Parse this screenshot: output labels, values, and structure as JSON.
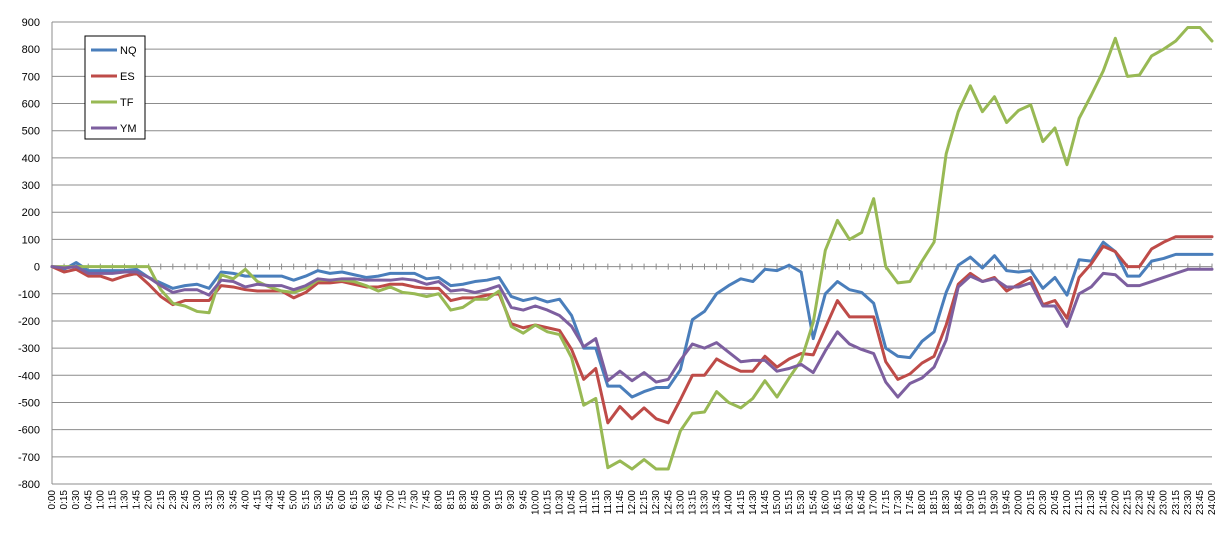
{
  "chart_data": {
    "type": "line",
    "title": "",
    "xlabel": "",
    "ylabel": "",
    "ylim": [
      -800,
      900
    ],
    "yticks": [
      900,
      800,
      700,
      600,
      500,
      400,
      300,
      200,
      100,
      0,
      -100,
      -200,
      -300,
      -400,
      -500,
      -600,
      -700,
      -800
    ],
    "grid": true,
    "legend_position": "top-left",
    "x": [
      "0:00",
      "0:15",
      "0:30",
      "0:45",
      "1:00",
      "1:15",
      "1:30",
      "1:45",
      "2:00",
      "2:15",
      "2:30",
      "2:45",
      "3:00",
      "3:15",
      "3:30",
      "3:45",
      "4:00",
      "4:15",
      "4:30",
      "4:45",
      "5:00",
      "5:15",
      "5:30",
      "5:45",
      "6:00",
      "6:15",
      "6:30",
      "6:45",
      "7:00",
      "7:15",
      "7:30",
      "7:45",
      "8:00",
      "8:15",
      "8:30",
      "8:45",
      "9:00",
      "9:15",
      "9:30",
      "9:45",
      "10:00",
      "10:15",
      "10:30",
      "10:45",
      "11:00",
      "11:15",
      "11:30",
      "11:45",
      "12:00",
      "12:15",
      "12:30",
      "12:45",
      "13:00",
      "13:15",
      "13:30",
      "13:45",
      "14:00",
      "14:15",
      "14:30",
      "14:45",
      "15:00",
      "15:15",
      "15:30",
      "15:45",
      "16:00",
      "16:15",
      "16:30",
      "16:45",
      "17:00",
      "17:15",
      "17:30",
      "17:45",
      "18:00",
      "18:15",
      "18:30",
      "18:45",
      "19:00",
      "19:15",
      "19:30",
      "19:45",
      "20:00",
      "20:15",
      "20:30",
      "20:45",
      "21:00",
      "21:15",
      "21:30",
      "21:45",
      "22:00",
      "22:15",
      "22:30",
      "22:45",
      "23:00",
      "23:15",
      "23:30",
      "23:45",
      "24:00"
    ],
    "series": [
      {
        "name": "NQ",
        "color": "#4a7ebb",
        "values": [
          0,
          -10,
          15,
          -15,
          -15,
          -15,
          -15,
          -10,
          -40,
          -60,
          -80,
          -70,
          -65,
          -80,
          -20,
          -25,
          -35,
          -35,
          -35,
          -35,
          -50,
          -35,
          -15,
          -25,
          -20,
          -30,
          -40,
          -35,
          -25,
          -25,
          -25,
          -45,
          -40,
          -70,
          -65,
          -55,
          -50,
          -40,
          -110,
          -125,
          -115,
          -130,
          -120,
          -180,
          -300,
          -300,
          -440,
          -440,
          -480,
          -460,
          -445,
          -445,
          -380,
          -195,
          -165,
          -100,
          -70,
          -45,
          -55,
          -10,
          -15,
          5,
          -20,
          -265,
          -100,
          -55,
          -85,
          -95,
          -135,
          -300,
          -330,
          -335,
          -275,
          -240,
          -95,
          5,
          35,
          -5,
          40,
          -15,
          -20,
          -15,
          -80,
          -40,
          -105,
          25,
          20,
          90,
          55,
          -35,
          -35,
          20,
          30,
          45,
          45,
          45,
          45
        ]
      },
      {
        "name": "ES",
        "color": "#be4b48",
        "values": [
          0,
          -20,
          -10,
          -35,
          -35,
          -50,
          -35,
          -25,
          -65,
          -110,
          -140,
          -125,
          -125,
          -125,
          -70,
          -75,
          -85,
          -90,
          -90,
          -90,
          -115,
          -95,
          -60,
          -60,
          -55,
          -65,
          -75,
          -75,
          -65,
          -65,
          -75,
          -80,
          -80,
          -125,
          -115,
          -115,
          -105,
          -100,
          -210,
          -225,
          -215,
          -225,
          -235,
          -305,
          -415,
          -375,
          -575,
          -515,
          -560,
          -520,
          -560,
          -575,
          -490,
          -400,
          -400,
          -340,
          -365,
          -385,
          -385,
          -330,
          -370,
          -340,
          -320,
          -325,
          -225,
          -125,
          -185,
          -185,
          -185,
          -350,
          -415,
          -395,
          -355,
          -330,
          -215,
          -65,
          -25,
          -55,
          -40,
          -90,
          -65,
          -40,
          -140,
          -125,
          -190,
          -40,
          10,
          75,
          55,
          0,
          0,
          65,
          90,
          110,
          110,
          110,
          110
        ]
      },
      {
        "name": "TF",
        "color": "#98b954",
        "values": [
          0,
          0,
          0,
          0,
          0,
          0,
          0,
          0,
          0,
          -85,
          -135,
          -145,
          -165,
          -170,
          -30,
          -45,
          -10,
          -55,
          -75,
          -90,
          -95,
          -80,
          -50,
          -50,
          -50,
          -55,
          -70,
          -90,
          -75,
          -95,
          -100,
          -110,
          -100,
          -160,
          -150,
          -120,
          -120,
          -90,
          -220,
          -245,
          -215,
          -240,
          -250,
          -335,
          -510,
          -485,
          -740,
          -715,
          -745,
          -710,
          -745,
          -745,
          -605,
          -540,
          -535,
          -460,
          -500,
          -520,
          -485,
          -420,
          -480,
          -410,
          -345,
          -205,
          60,
          170,
          100,
          125,
          250,
          0,
          -60,
          -55,
          20,
          90,
          415,
          570,
          665,
          570,
          625,
          530,
          575,
          595,
          460,
          510,
          375,
          545,
          630,
          720,
          840,
          700,
          705,
          775,
          800,
          830,
          880,
          880,
          830
        ]
      },
      {
        "name": "YM",
        "color": "#7d5f9f",
        "values": [
          0,
          -5,
          0,
          -25,
          -25,
          -25,
          -20,
          -20,
          -40,
          -70,
          -95,
          -85,
          -85,
          -105,
          -50,
          -55,
          -75,
          -65,
          -70,
          -70,
          -85,
          -70,
          -45,
          -50,
          -45,
          -45,
          -50,
          -50,
          -50,
          -45,
          -50,
          -65,
          -55,
          -90,
          -85,
          -95,
          -85,
          -70,
          -150,
          -160,
          -145,
          -160,
          -180,
          -220,
          -295,
          -265,
          -420,
          -385,
          -420,
          -390,
          -425,
          -415,
          -345,
          -285,
          -300,
          -280,
          -315,
          -350,
          -345,
          -345,
          -385,
          -375,
          -360,
          -390,
          -310,
          -240,
          -285,
          -305,
          -320,
          -425,
          -480,
          -430,
          -410,
          -370,
          -270,
          -75,
          -35,
          -55,
          -45,
          -75,
          -75,
          -60,
          -145,
          -145,
          -220,
          -100,
          -75,
          -25,
          -30,
          -70,
          -70,
          -55,
          -40,
          -25,
          -10,
          -10,
          -10
        ]
      }
    ]
  }
}
